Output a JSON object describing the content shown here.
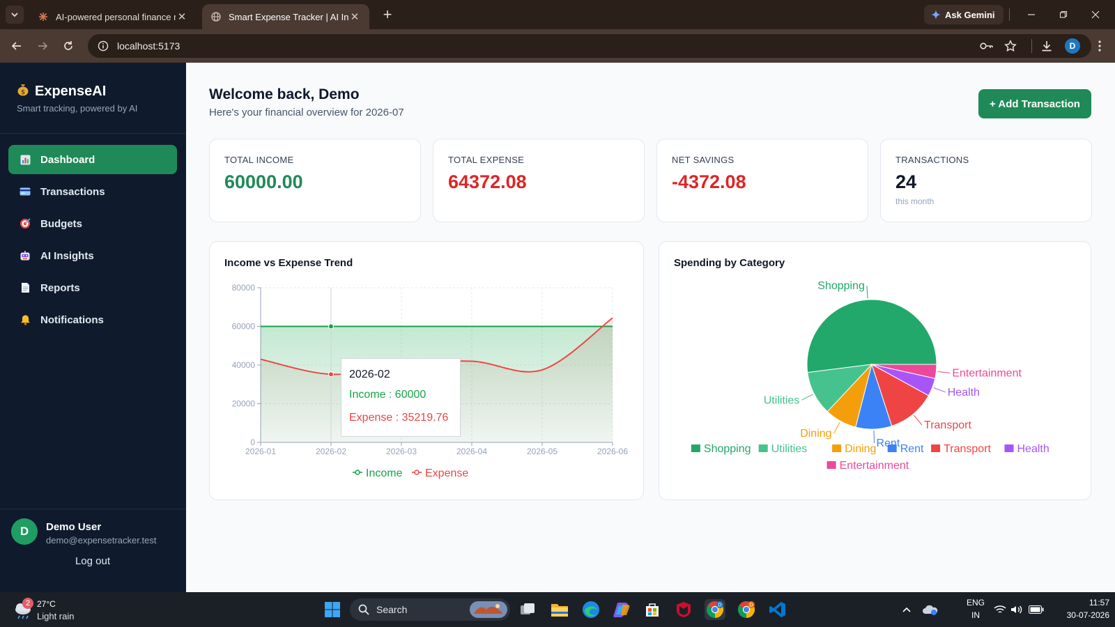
{
  "browser": {
    "tabs": [
      {
        "title": "AI-powered personal finance m",
        "active": false,
        "icon": "claude-icon"
      },
      {
        "title": "Smart Expense Tracker | AI Insig",
        "active": true,
        "icon": "globe-icon"
      }
    ],
    "ask_gemini": "Ask Gemini",
    "url": "localhost:5173",
    "profile_initial": "D"
  },
  "sidebar": {
    "brand": "ExpenseAI",
    "brand_icon": "money-bag-icon",
    "tagline": "Smart tracking, powered by AI",
    "items": [
      {
        "label": "Dashboard",
        "icon": "chart-icon",
        "active": true
      },
      {
        "label": "Transactions",
        "icon": "card-icon",
        "active": false
      },
      {
        "label": "Budgets",
        "icon": "target-icon",
        "active": false
      },
      {
        "label": "AI Insights",
        "icon": "robot-icon",
        "active": false
      },
      {
        "label": "Reports",
        "icon": "document-icon",
        "active": false
      },
      {
        "label": "Notifications",
        "icon": "bell-icon",
        "active": false
      }
    ],
    "user": {
      "initial": "D",
      "name": "Demo User",
      "email": "demo@expensetracker.test"
    },
    "logout": "Log out"
  },
  "header": {
    "welcome": "Welcome back, Demo",
    "subtitle": "Here's your financial overview for 2026-07",
    "add_button": "+ Add Transaction"
  },
  "stats": [
    {
      "label": "TOTAL INCOME",
      "value": "60000.00",
      "color": "#1f8a57"
    },
    {
      "label": "TOTAL EXPENSE",
      "value": "64372.08",
      "color": "#dc2626"
    },
    {
      "label": "NET SAVINGS",
      "value": "-4372.08",
      "color": "#dc2626"
    },
    {
      "label": "TRANSACTIONS",
      "value": "24",
      "sub": "this month",
      "color": "#0f172a"
    }
  ],
  "colors": {
    "accent": "#1f8a57",
    "income": "#16a34a",
    "expense": "#ef4444",
    "sidebar_bg": "#0f1b2d"
  },
  "chart_data": [
    {
      "type": "area",
      "title": "Income vs Expense Trend",
      "x": [
        "2026-01",
        "2026-02",
        "2026-03",
        "2026-04",
        "2026-05",
        "2026-06"
      ],
      "yticks": [
        "0",
        "20000",
        "40000",
        "60000",
        "80000"
      ],
      "ylim": [
        0,
        80000
      ],
      "grid": true,
      "legend_position": "bottom",
      "series": [
        {
          "name": "Income",
          "values": [
            60000,
            60000,
            60000,
            60000,
            60000,
            60000
          ],
          "color": "#16a34a"
        },
        {
          "name": "Expense",
          "values": [
            43000,
            35219.76,
            40000,
            42000,
            37500,
            64372
          ],
          "color": "#ef4444"
        }
      ],
      "tooltip": {
        "label": "2026-02",
        "income_text": "Income : 60000",
        "expense_text": "Expense : 35219.76"
      }
    },
    {
      "type": "pie",
      "title": "Spending by Category",
      "legend_position": "bottom",
      "slices": [
        {
          "label": "Shopping",
          "value": 52.0,
          "color": "#22a86b"
        },
        {
          "label": "Utilities",
          "value": 11.0,
          "color": "#46c28e"
        },
        {
          "label": "Dining",
          "value": 8.0,
          "color": "#f59e0b"
        },
        {
          "label": "Rent",
          "value": 9.0,
          "color": "#3b82f6"
        },
        {
          "label": "Transport",
          "value": 12.0,
          "color": "#ef4444"
        },
        {
          "label": "Health",
          "value": 4.5,
          "color": "#a855f7"
        },
        {
          "label": "Entertainment",
          "value": 3.5,
          "color": "#ec4899"
        }
      ]
    }
  ],
  "taskbar": {
    "weather_temp": "27°C",
    "weather_desc": "Light rain",
    "weather_badge": "2",
    "search": "Search",
    "lang": "ENG",
    "region": "IN",
    "time": "11:57",
    "date": "30-07-2026",
    "apps": [
      "task-view-icon",
      "file-explorer-icon",
      "edge-icon",
      "copilot-icon",
      "store-icon",
      "mcafee-icon",
      "chrome-icon",
      "chrome-icon",
      "vscode-icon"
    ]
  }
}
